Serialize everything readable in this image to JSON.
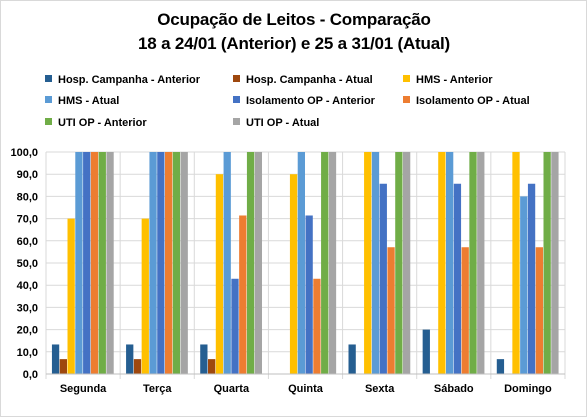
{
  "chart_data": {
    "type": "bar",
    "title": "Ocupação de Leitos - Comparação",
    "subtitle": "18 a 24/01 (Anterior) e 25 a 31/01 (Atual)",
    "categories": [
      "Segunda",
      "Terça",
      "Quarta",
      "Quinta",
      "Sexta",
      "Sábado",
      "Domingo"
    ],
    "ylim": [
      0,
      100
    ],
    "yticks": [
      "0,0",
      "10,0",
      "20,0",
      "30,0",
      "40,0",
      "50,0",
      "60,0",
      "70,0",
      "80,0",
      "90,0",
      "100,0"
    ],
    "grid": true,
    "legend_position": "top",
    "series": [
      {
        "name": "Hosp. Campanha - Anterior",
        "color": "#255e91",
        "values": [
          13.3,
          13.3,
          13.3,
          0,
          13.3,
          20.0,
          6.7
        ]
      },
      {
        "name": "Hosp. Campanha - Atual",
        "color": "#9e480e",
        "values": [
          6.7,
          6.7,
          6.7,
          0,
          0,
          0,
          0
        ]
      },
      {
        "name": "HMS - Anterior",
        "color": "#ffc000",
        "values": [
          70.0,
          70.0,
          90.0,
          90.0,
          100.0,
          100.0,
          100.0
        ]
      },
      {
        "name": "HMS - Atual",
        "color": "#5b9bd5",
        "values": [
          100.0,
          100.0,
          100.0,
          100.0,
          100.0,
          100.0,
          80.0
        ]
      },
      {
        "name": "Isolamento OP - Anterior",
        "color": "#4472c4",
        "values": [
          100.0,
          100.0,
          42.9,
          71.4,
          85.7,
          85.7,
          85.7
        ]
      },
      {
        "name": "Isolamento OP - Atual",
        "color": "#ed7d31",
        "values": [
          100.0,
          100.0,
          71.4,
          42.9,
          57.1,
          57.1,
          57.1
        ]
      },
      {
        "name": "UTI OP - Anterior",
        "color": "#70ad47",
        "values": [
          100.0,
          100.0,
          100.0,
          100.0,
          100.0,
          100.0,
          100.0
        ]
      },
      {
        "name": "UTI OP - Atual",
        "color": "#a5a5a5",
        "values": [
          100.0,
          100.0,
          100.0,
          100.0,
          100.0,
          100.0,
          100.0
        ]
      }
    ]
  }
}
